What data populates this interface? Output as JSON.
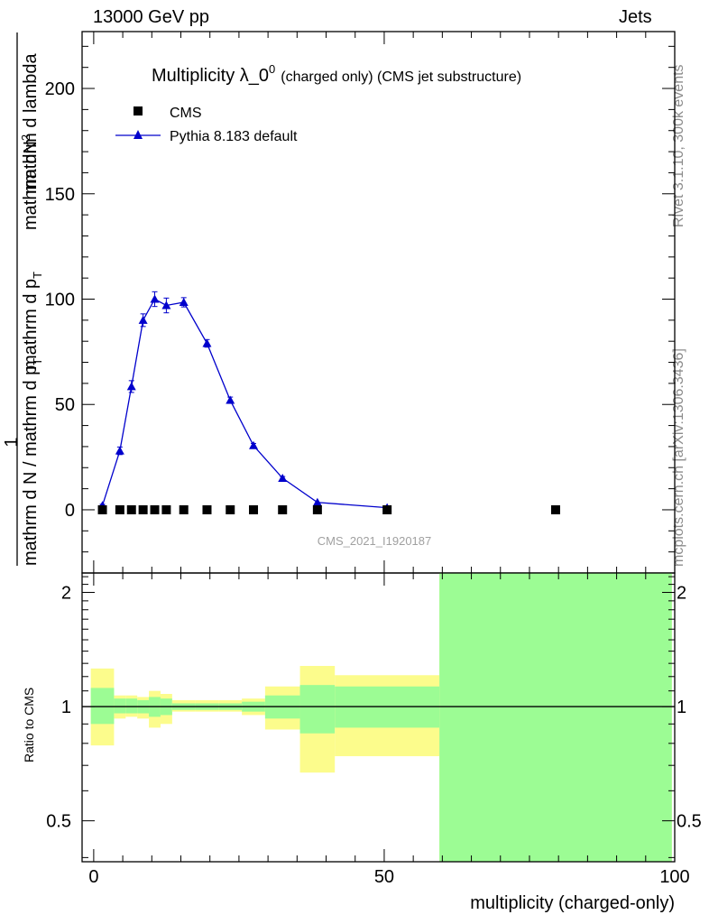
{
  "header": {
    "left": "13000 GeV pp",
    "right": "Jets"
  },
  "side_labels": {
    "rivet": "Rivet 3.1.10,  300k events",
    "mcplots": "mcplots.cern.ch [arXiv:1306.3436]"
  },
  "watermark": "CMS_2021_I1920187",
  "colors": {
    "mc": "#0000cc",
    "band_stat": "#9cfc94",
    "band_total": "#fcfc8c",
    "data": "#000000"
  },
  "chart_data": [
    {
      "type": "scatter",
      "title_main": "Multiplicity λ_0",
      "title_sup": "0",
      "title_suffix": "(charged only) (CMS jet substructure)",
      "ylabel_num": "mathrm dN",
      "ylabel_num_sup": "2",
      "ylabel_den1": "mathrm d p",
      "ylabel_den1_sub": "T",
      "ylabel_den2": "mathrm d lambda",
      "ylabel_frac": "1",
      "ylabel_bottom": "mathrm d N / mathrm d p",
      "ylabel_bottom_sub": "T",
      "ylabel_bottom2": "mathrm d N",
      "xlim": [
        -2,
        100
      ],
      "ylim": [
        -30,
        227
      ],
      "yticks": [
        0,
        50,
        100,
        150,
        200
      ],
      "ytick_labels": [
        "0",
        "50",
        "100",
        "150",
        "200"
      ],
      "legend": [
        {
          "label": "CMS",
          "marker": "square"
        },
        {
          "label": "Pythia 8.183 default",
          "marker": "triangle"
        }
      ],
      "series": [
        {
          "name": "CMS",
          "x": [
            1.5,
            4.5,
            6.5,
            8.5,
            10.5,
            12.5,
            15.5,
            19.5,
            23.5,
            27.5,
            32.5,
            38.5,
            50.5,
            79.5
          ],
          "y": [
            0,
            0,
            0,
            0,
            0,
            0,
            0,
            0,
            0,
            0,
            0,
            0,
            0,
            0
          ]
        },
        {
          "name": "Pythia 8.183 default",
          "x": [
            1.5,
            4.5,
            6.5,
            8.5,
            10.5,
            12.5,
            15.5,
            19.5,
            23.5,
            27.5,
            32.5,
            38.5,
            50.5
          ],
          "y": [
            2,
            28,
            58.5,
            90,
            100,
            97,
            98.5,
            79,
            52,
            30.5,
            15,
            3.5,
            1
          ],
          "yerr": [
            0.6,
            1.8,
            2.8,
            3.0,
            3.5,
            3.5,
            2.2,
            1.8,
            1.5,
            1.0,
            0.8,
            0.4,
            0.3
          ]
        }
      ]
    },
    {
      "type": "area",
      "ylabel": "Ratio to CMS",
      "xlabel": "multiplicity (charged-only)",
      "xlim": [
        -2,
        100
      ],
      "ylim": [
        0.39,
        2.25
      ],
      "yscale": "log",
      "yticks": [
        0.5,
        1,
        2
      ],
      "ytick_labels": [
        "0.5",
        "1",
        "2"
      ],
      "xticks": [
        0,
        50,
        100
      ],
      "xtick_labels": [
        "0",
        "50",
        "100"
      ],
      "reference_line": 1,
      "bins": [
        {
          "lo": -0.5,
          "hi": 3.5,
          "stat": [
            0.9,
            1.12
          ],
          "total": [
            0.79,
            1.26
          ]
        },
        {
          "lo": 3.5,
          "hi": 5.5,
          "stat": [
            0.96,
            1.05
          ],
          "total": [
            0.93,
            1.07
          ]
        },
        {
          "lo": 5.5,
          "hi": 7.5,
          "stat": [
            0.96,
            1.05
          ],
          "total": [
            0.94,
            1.07
          ]
        },
        {
          "lo": 7.5,
          "hi": 9.5,
          "stat": [
            0.96,
            1.04
          ],
          "total": [
            0.93,
            1.06
          ]
        },
        {
          "lo": 9.5,
          "hi": 11.5,
          "stat": [
            0.94,
            1.06
          ],
          "total": [
            0.88,
            1.1
          ]
        },
        {
          "lo": 11.5,
          "hi": 13.5,
          "stat": [
            0.95,
            1.05
          ],
          "total": [
            0.9,
            1.08
          ]
        },
        {
          "lo": 13.5,
          "hi": 17.5,
          "stat": [
            0.98,
            1.02
          ],
          "total": [
            0.97,
            1.04
          ]
        },
        {
          "lo": 17.5,
          "hi": 21.5,
          "stat": [
            0.98,
            1.02
          ],
          "total": [
            0.97,
            1.04
          ]
        },
        {
          "lo": 21.5,
          "hi": 25.5,
          "stat": [
            0.98,
            1.02
          ],
          "total": [
            0.97,
            1.04
          ]
        },
        {
          "lo": 25.5,
          "hi": 29.5,
          "stat": [
            0.97,
            1.03
          ],
          "total": [
            0.95,
            1.05
          ]
        },
        {
          "lo": 29.5,
          "hi": 35.5,
          "stat": [
            0.93,
            1.07
          ],
          "total": [
            0.87,
            1.13
          ]
        },
        {
          "lo": 35.5,
          "hi": 41.5,
          "stat": [
            0.85,
            1.14
          ],
          "total": [
            0.67,
            1.28
          ]
        },
        {
          "lo": 41.5,
          "hi": 59.5,
          "stat": [
            0.88,
            1.13
          ],
          "total": [
            0.74,
            1.21
          ]
        },
        {
          "lo": 59.5,
          "hi": 99.5,
          "stat": [
            0.39,
            2.25
          ],
          "total": [
            0.39,
            2.25
          ]
        }
      ]
    }
  ]
}
